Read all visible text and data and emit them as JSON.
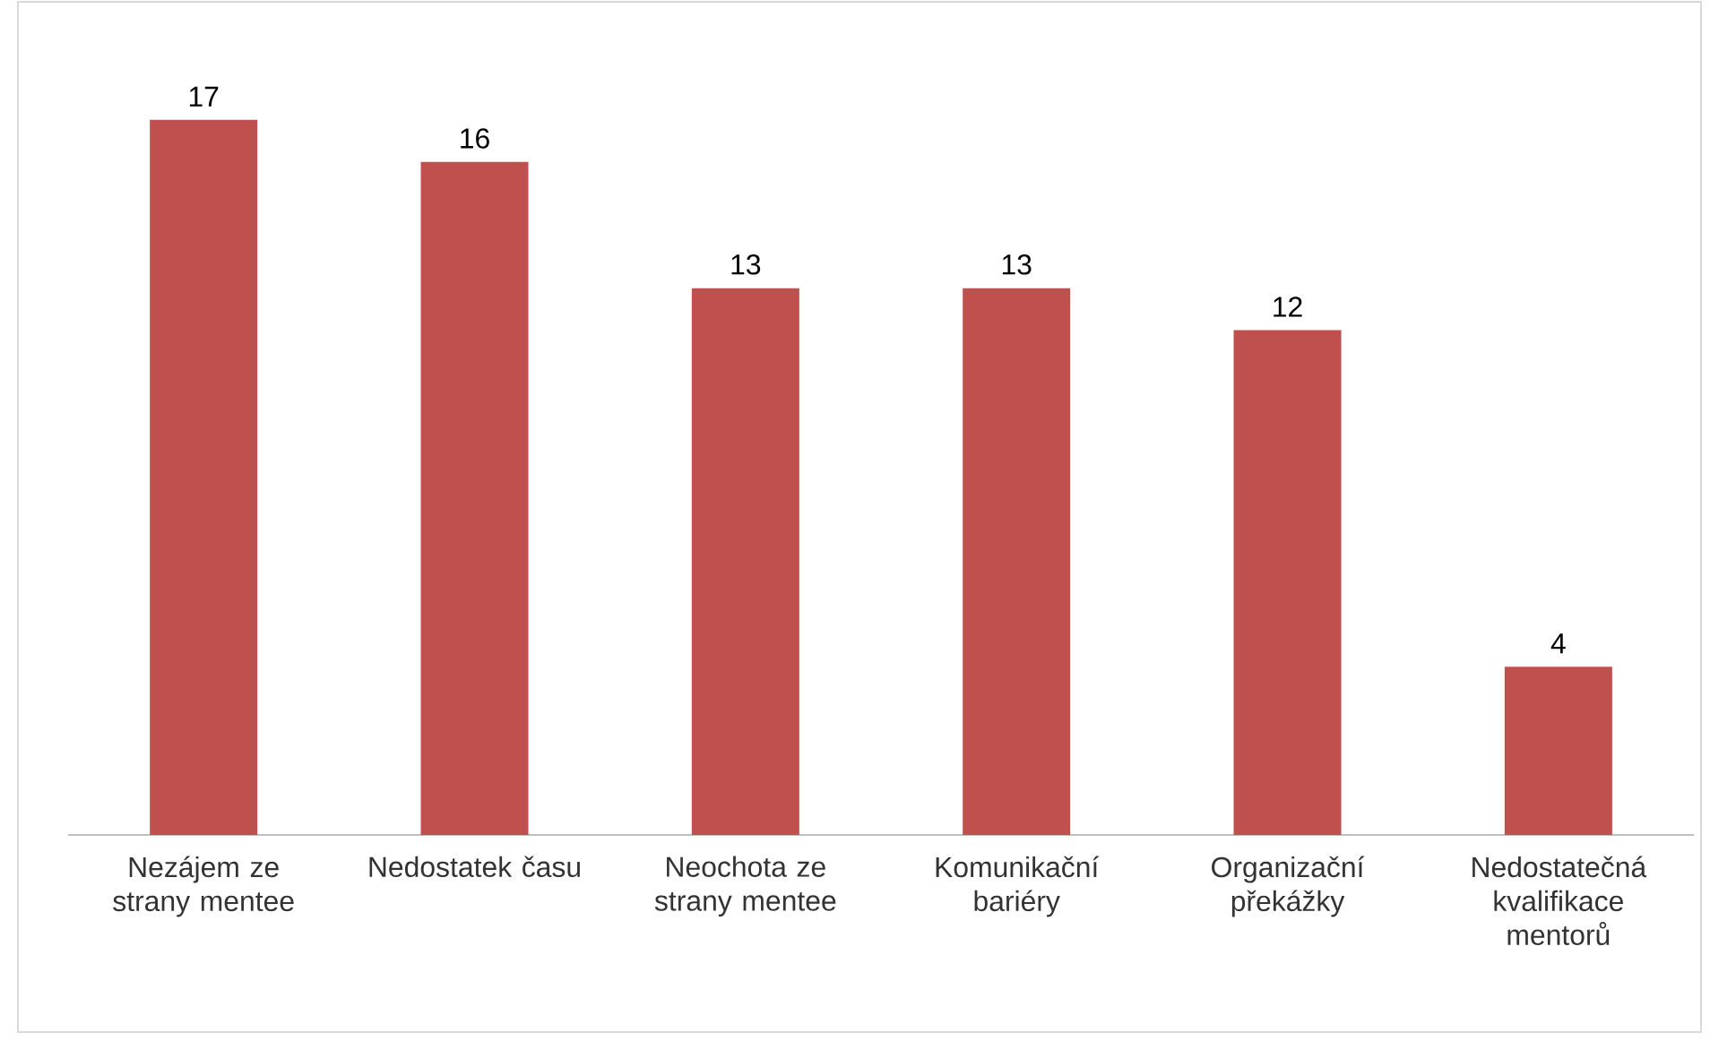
{
  "chart_data": {
    "type": "bar",
    "categories": [
      "Nezájem ze strany mentee",
      "Nedostatek času",
      "Neochota ze strany mentee",
      "Komunikační bariéry",
      "Organizační překážky",
      "Nedostatečná kvalifikace mentorů"
    ],
    "values": [
      17,
      16,
      13,
      13,
      12,
      4
    ],
    "color": "#c0504d",
    "data_labels": true
  }
}
